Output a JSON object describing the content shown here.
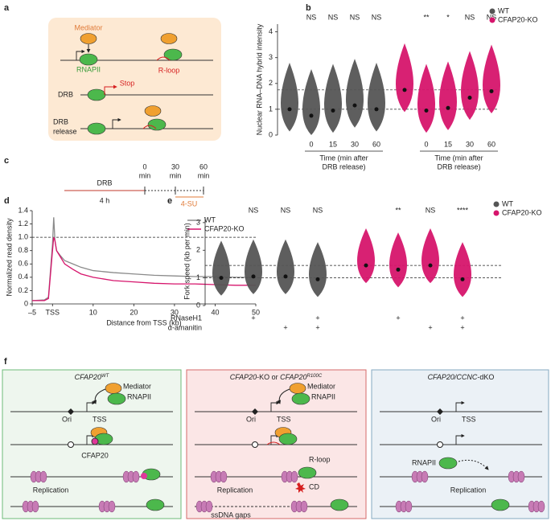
{
  "panel_labels": [
    "a",
    "b",
    "c",
    "d",
    "e",
    "f"
  ],
  "a": {
    "mediator": "Mediator",
    "rnapii": "RNAPII",
    "rloop": "R-loop",
    "drb": "DRB",
    "stop": "Stop",
    "drb_release": [
      "DRB",
      "release"
    ]
  },
  "c": {
    "drb": "DRB",
    "duration": "4 h",
    "times": [
      [
        "0",
        "min"
      ],
      [
        "30",
        "min"
      ],
      [
        "60",
        "min"
      ]
    ],
    "label": "4-SU"
  },
  "chart_data": [
    {
      "type": "violin",
      "ylabel": "Nuclear RNA–DNA hybrid intensity",
      "ylim": [
        0,
        4.3
      ],
      "yticks": [
        0,
        1,
        2,
        3,
        4
      ],
      "categories": [
        null,
        "0",
        "15",
        "30",
        "60",
        null,
        "0",
        "15",
        "30",
        "60"
      ],
      "series": [
        {
          "name": "WT",
          "color": "#555555",
          "values": [
            1.0,
            0.75,
            0.95,
            1.15,
            1.0,
            null,
            null,
            null,
            null,
            null
          ]
        },
        {
          "name": "CFAP20-KO",
          "color": "#d6156c",
          "values": [
            null,
            null,
            null,
            null,
            null,
            1.75,
            0.95,
            1.05,
            1.45,
            1.7
          ]
        }
      ],
      "annotations": [
        null,
        "NS",
        "NS",
        "NS",
        "NS",
        null,
        "**",
        "*",
        "NS",
        "NS"
      ],
      "group_labels": [
        [
          "Time (min after",
          "DRB release)"
        ],
        [
          "Time (min after",
          "DRB release)"
        ]
      ],
      "reference_lines": [
        1,
        1.75
      ],
      "legend": "upper right"
    },
    {
      "type": "line",
      "xlabel": "Distance from TSS (kb)",
      "ylabel": "Normalized read density",
      "x": [
        -5,
        -2,
        -1,
        0,
        0.3,
        0.6,
        1,
        2,
        3,
        5,
        7,
        10,
        15,
        20,
        25,
        30,
        35,
        40,
        45,
        50
      ],
      "series": [
        {
          "name": "WT",
          "color": "#8a8a8a",
          "values": [
            0.05,
            0.06,
            0.1,
            0.9,
            1.3,
            0.95,
            0.8,
            0.72,
            0.65,
            0.6,
            0.55,
            0.5,
            0.47,
            0.45,
            0.43,
            0.42,
            0.41,
            0.41,
            0.4,
            0.4
          ]
        },
        {
          "name": "CFAP20-KO",
          "color": "#d6156c",
          "values": [
            0.05,
            0.05,
            0.08,
            0.8,
            1.0,
            0.95,
            0.8,
            0.7,
            0.6,
            0.52,
            0.45,
            0.4,
            0.35,
            0.33,
            0.31,
            0.3,
            0.3,
            0.29,
            0.28,
            0.28
          ]
        }
      ],
      "xlim": [
        -5,
        50
      ],
      "ylim": [
        0,
        1.4
      ],
      "xticks": [
        {
          "value": -5,
          "label": "–5"
        },
        {
          "value": 0,
          "label": "TSS"
        },
        10,
        20,
        30,
        40,
        50
      ],
      "yticks": [
        0,
        0.2,
        0.4,
        0.6,
        0.8,
        {
          "value": 1,
          "label": "1.0"
        },
        1.2,
        1.4
      ],
      "reference_lines": [
        1
      ],
      "legend": "upper right"
    },
    {
      "type": "violin",
      "ylabel": "Fork speed (kb per min)",
      "ylim": [
        0,
        3.2
      ],
      "yticks": [
        0,
        1,
        2,
        3
      ],
      "series": [
        {
          "name": "WT",
          "color": "#555555",
          "values": [
            1.0,
            1.05,
            1.05,
            0.95,
            null,
            null,
            null,
            null
          ]
        },
        {
          "name": "CFAP20-KO",
          "color": "#d6156c",
          "values": [
            null,
            null,
            null,
            null,
            1.45,
            1.3,
            1.45,
            0.95
          ]
        }
      ],
      "annotations": [
        null,
        "NS",
        "NS",
        "NS",
        null,
        "**",
        "NS",
        "****"
      ],
      "conditions": [
        {
          "name": "RNaseH1",
          "marks": [
            null,
            "+",
            null,
            "+",
            null,
            "+",
            null,
            "+"
          ]
        },
        {
          "name": "α-amanitin",
          "marks": [
            null,
            null,
            "+",
            "+",
            null,
            null,
            "+",
            "+"
          ]
        }
      ],
      "reference_lines": [
        1,
        1.45
      ],
      "legend": "upper right"
    }
  ],
  "f": [
    {
      "title": [
        {
          "text": "CFAP20",
          "style": "italic"
        },
        {
          "text": "WT",
          "style": "sup"
        }
      ],
      "labels": {
        "mediator": "Mediator",
        "rnapii": "RNAPII",
        "ori": "Ori",
        "tss": "TSS",
        "cfap20": "CFAP20",
        "replication": "Replication"
      }
    },
    {
      "title": [
        {
          "text": "CFAP20",
          "style": "italic"
        },
        {
          "text": "-KO or ",
          "style": "normal"
        },
        {
          "text": "CFAP20",
          "style": "italic"
        },
        {
          "text": "R100C",
          "style": "sup"
        }
      ],
      "labels": {
        "mediator": "Mediator",
        "rnapii": "RNAPII",
        "ori": "Ori",
        "tss": "TSS",
        "rloop": "R-loop",
        "replication": "Replication",
        "cd": "CD",
        "gaps": "ssDNA gaps"
      }
    },
    {
      "title": [
        {
          "text": "CFAP20/CCNC",
          "style": "italic"
        },
        {
          "text": "-dKO",
          "style": "normal"
        }
      ],
      "labels": {
        "ori": "Ori",
        "tss": "TSS",
        "rnapii": "RNAPII",
        "replication": "Replication"
      }
    }
  ]
}
